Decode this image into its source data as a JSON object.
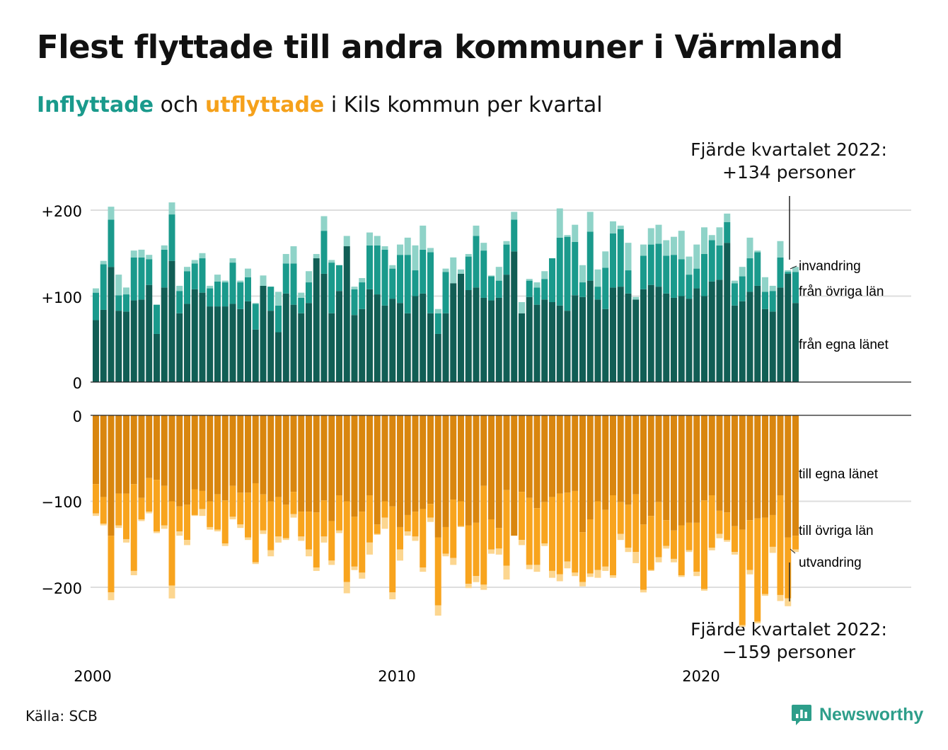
{
  "title": "Flest flyttade till andra kommuner i Värmland",
  "subtitle": {
    "inflyttade": "Inflyttade",
    "och": "och",
    "utflyttade": "utflyttade",
    "rest": "i Kils kommun per kvartal"
  },
  "annotations": {
    "top_line1": "Fjärde kvartalet 2022:",
    "top_line2": "+134 personer",
    "bottom_line1": "Fjärde kvartalet 2022:",
    "bottom_line2": "−159 personer"
  },
  "source": "Källa: SCB",
  "brand": "Newsworthy",
  "colors": {
    "in_own": "#115e55",
    "in_other": "#1a9a8c",
    "in_immigration": "#8fd3c8",
    "out_own": "#d9860f",
    "out_other": "#f8a41e",
    "out_emigration": "#fcd690"
  },
  "chart_data": {
    "type": "bar",
    "stacked": true,
    "grid": true,
    "x_start_year": 2000,
    "x_tick_labels": [
      "2000",
      "2010",
      "2020"
    ],
    "top_panel": {
      "y_tick_labels": [
        "+200",
        "+100",
        "0"
      ],
      "ylim": [
        0,
        200
      ],
      "series_labels": [
        "invandring",
        "från övriga län",
        "från egna länet"
      ],
      "series": [
        {
          "name": "från egna länet",
          "values": [
            72,
            84,
            134,
            83,
            82,
            95,
            96,
            113,
            56,
            110,
            141,
            80,
            91,
            108,
            104,
            88,
            88,
            88,
            91,
            85,
            94,
            61,
            112,
            83,
            58,
            103,
            90,
            80,
            92,
            144,
            126,
            80,
            106,
            158,
            78,
            85,
            108,
            102,
            89,
            97,
            92,
            80,
            100,
            103,
            80,
            56,
            80,
            115,
            126,
            107,
            110,
            98,
            95,
            98,
            125,
            152,
            80,
            99,
            90,
            96,
            93,
            89,
            83,
            101,
            99,
            118,
            96,
            85,
            110,
            111,
            103,
            96,
            108,
            113,
            111,
            103,
            98,
            100,
            97,
            109,
            100,
            117,
            119,
            162,
            89,
            94,
            105,
            112,
            85,
            82,
            110,
            126,
            92
          ]
        },
        {
          "name": "från övriga län",
          "values": [
            32,
            53,
            55,
            18,
            20,
            50,
            49,
            30,
            34,
            44,
            54,
            26,
            38,
            30,
            40,
            21,
            29,
            28,
            48,
            31,
            28,
            30,
            0,
            28,
            31,
            35,
            48,
            18,
            24,
            0,
            50,
            59,
            30,
            0,
            30,
            31,
            51,
            57,
            65,
            35,
            56,
            68,
            30,
            51,
            71,
            24,
            48,
            0,
            0,
            39,
            60,
            55,
            28,
            20,
            35,
            37,
            0,
            19,
            20,
            24,
            51,
            79,
            86,
            62,
            17,
            57,
            15,
            48,
            63,
            67,
            27,
            0,
            39,
            47,
            50,
            44,
            50,
            43,
            28,
            23,
            49,
            48,
            40,
            24,
            26,
            29,
            39,
            39,
            20,
            24,
            35,
            2,
            36
          ]
        },
        {
          "name": "invandring",
          "values": [
            5,
            4,
            15,
            24,
            8,
            8,
            9,
            5,
            0,
            5,
            14,
            6,
            5,
            4,
            6,
            3,
            8,
            2,
            5,
            2,
            10,
            1,
            12,
            0,
            16,
            11,
            20,
            6,
            13,
            5,
            17,
            3,
            0,
            12,
            3,
            5,
            15,
            11,
            4,
            4,
            12,
            20,
            29,
            28,
            5,
            5,
            4,
            30,
            5,
            3,
            12,
            9,
            1,
            16,
            4,
            9,
            13,
            2,
            6,
            9,
            0,
            34,
            2,
            20,
            20,
            23,
            20,
            19,
            14,
            4,
            32,
            3,
            13,
            19,
            22,
            18,
            21,
            33,
            21,
            28,
            31,
            6,
            21,
            10,
            3,
            11,
            24,
            2,
            17,
            6,
            19,
            2,
            6
          ]
        }
      ]
    },
    "bottom_panel": {
      "y_tick_labels": [
        "0",
        "−100",
        "−200"
      ],
      "ylim": [
        -200,
        0
      ],
      "series_labels": [
        "till egna länet",
        "till övriga län",
        "utvandring"
      ],
      "series": [
        {
          "name": "till egna länet",
          "values": [
            80,
            95,
            140,
            91,
            91,
            80,
            96,
            73,
            75,
            82,
            100,
            106,
            104,
            86,
            88,
            100,
            92,
            99,
            82,
            90,
            90,
            79,
            92,
            100,
            95,
            104,
            89,
            112,
            112,
            113,
            99,
            123,
            93,
            100,
            118,
            112,
            93,
            127,
            100,
            106,
            130,
            116,
            112,
            109,
            103,
            142,
            130,
            98,
            100,
            128,
            125,
            82,
            121,
            131,
            87,
            140,
            89,
            96,
            108,
            101,
            95,
            91,
            90,
            88,
            136,
            121,
            100,
            110,
            93,
            101,
            104,
            92,
            127,
            117,
            101,
            122,
            134,
            128,
            125,
            125,
            99,
            93,
            111,
            113,
            129,
            133,
            122,
            120,
            119,
            116,
            93,
            142,
            140
          ]
        },
        {
          "name": "till övriga län",
          "values": [
            34,
            31,
            66,
            37,
            53,
            101,
            25,
            39,
            60,
            46,
            98,
            29,
            41,
            30,
            21,
            30,
            41,
            50,
            36,
            37,
            52,
            92,
            42,
            57,
            46,
            39,
            26,
            29,
            44,
            64,
            42,
            46,
            41,
            94,
            58,
            71,
            55,
            11,
            19,
            100,
            26,
            19,
            29,
            68,
            16,
            79,
            31,
            68,
            29,
            68,
            62,
            115,
            35,
            24,
            88,
            0,
            56,
            78,
            66,
            48,
            86,
            94,
            80,
            95,
            58,
            63,
            80,
            66,
            93,
            37,
            50,
            67,
            76,
            63,
            64,
            30,
            33,
            58,
            32,
            57,
            103,
            61,
            27,
            32,
            30,
            111,
            58,
            120,
            89,
            37,
            116,
            71,
            16
          ]
        },
        {
          "name": "utvandring",
          "values": [
            3,
            2,
            9,
            3,
            4,
            5,
            2,
            2,
            2,
            4,
            15,
            5,
            6,
            1,
            8,
            3,
            2,
            3,
            3,
            4,
            3,
            2,
            4,
            7,
            7,
            2,
            4,
            5,
            8,
            4,
            7,
            5,
            3,
            13,
            4,
            7,
            14,
            1,
            13,
            8,
            13,
            5,
            5,
            5,
            5,
            12,
            3,
            8,
            1,
            5,
            7,
            6,
            5,
            7,
            16,
            0,
            6,
            5,
            8,
            3,
            8,
            8,
            8,
            4,
            5,
            4,
            9,
            5,
            3,
            7,
            5,
            13,
            3,
            1,
            6,
            3,
            4,
            2,
            2,
            5,
            2,
            3,
            5,
            2,
            3,
            2,
            5,
            2,
            2,
            7,
            7,
            9,
            3
          ]
        }
      ]
    }
  }
}
